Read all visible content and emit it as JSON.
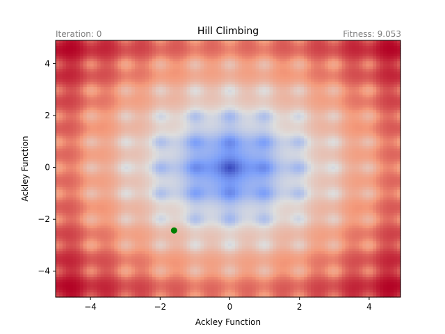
{
  "chart_data": {
    "type": "heatmap",
    "title": "Hill Climbing",
    "iteration_text": "Iteration: 0",
    "fitness_text": "Fitness: 9.053",
    "xlabel": "Ackley Function",
    "ylabel": "Ackley Function",
    "xlim": [
      -5,
      4.9
    ],
    "ylim": [
      -5,
      4.9
    ],
    "xticks": [
      -4,
      -2,
      0,
      2,
      4
    ],
    "yticks": [
      -4,
      -2,
      0,
      2,
      4
    ],
    "xtick_labels": [
      "−4",
      "−2",
      "0",
      "2",
      "4"
    ],
    "ytick_labels": [
      "−4",
      "−2",
      "0",
      "2",
      "4"
    ],
    "colormap": "coolwarm",
    "function": "ackley",
    "point": {
      "x": -1.6,
      "y": -2.43,
      "color": "#008000"
    }
  }
}
